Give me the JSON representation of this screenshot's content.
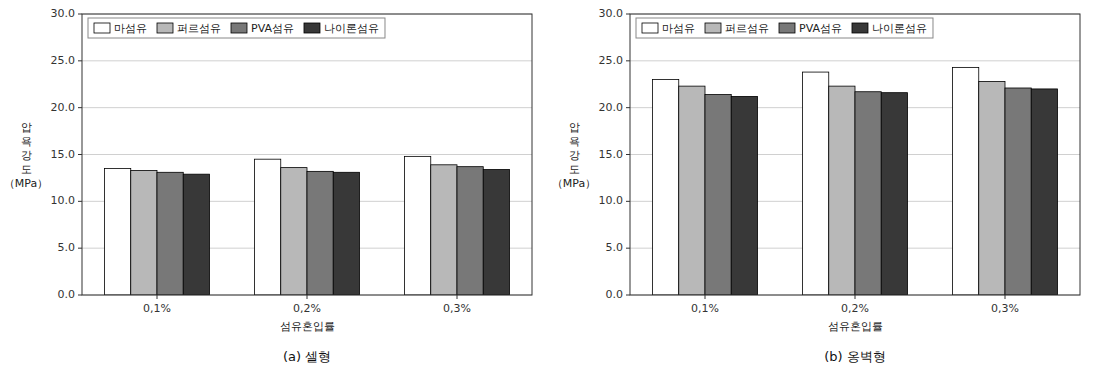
{
  "chart_data": [
    {
      "type": "bar",
      "title": "(a)  셀형",
      "categories": [
        "0,1%",
        "0,2%",
        "0,3%"
      ],
      "series": [
        {
          "name": "마섬유",
          "color": "#ffffff",
          "values": [
            13.5,
            14.5,
            14.8
          ]
        },
        {
          "name": "퍼르섬유",
          "color": "#b8b8b8",
          "values": [
            13.3,
            13.6,
            13.9
          ]
        },
        {
          "name": "PVA섬유",
          "color": "#787878",
          "values": [
            13.1,
            13.2,
            13.7
          ]
        },
        {
          "name": "나이론섬유",
          "color": "#383838",
          "values": [
            12.9,
            13.1,
            13.4
          ]
        }
      ],
      "xlabel": "섬유혼입률",
      "ylabel": "압\n욕\n강\n도\n（MPa）",
      "ylim": [
        0,
        30
      ],
      "yticks": [
        {
          "value": 0,
          "label": "0.0"
        },
        {
          "value": 5,
          "label": "5.0"
        },
        {
          "value": 10,
          "label": "10.0"
        },
        {
          "value": 15,
          "label": "15.0"
        },
        {
          "value": 20,
          "label": "20.0"
        },
        {
          "value": 25,
          "label": "25.0"
        },
        {
          "value": 30,
          "label": "30.0"
        }
      ],
      "grid": true,
      "legend": "upper left"
    },
    {
      "type": "bar",
      "title": "(b)  옹벽형",
      "categories": [
        "0,1%",
        "0,2%",
        "0,3%"
      ],
      "series": [
        {
          "name": "마섬유",
          "color": "#ffffff",
          "values": [
            23.0,
            23.8,
            24.3
          ]
        },
        {
          "name": "퍼르섬유",
          "color": "#b8b8b8",
          "values": [
            22.3,
            22.3,
            22.8
          ]
        },
        {
          "name": "PVA섬유",
          "color": "#787878",
          "values": [
            21.4,
            21.7,
            22.1
          ]
        },
        {
          "name": "나이론섬유",
          "color": "#383838",
          "values": [
            21.2,
            21.6,
            22.0
          ]
        }
      ],
      "xlabel": "섬유혼입률",
      "ylabel": "압\n욕\n강\n도\n（MPa）",
      "ylim": [
        0,
        30
      ],
      "yticks": [
        {
          "value": 0,
          "label": "0.0"
        },
        {
          "value": 5,
          "label": "5.0"
        },
        {
          "value": 10,
          "label": "10.0"
        },
        {
          "value": 15,
          "label": "15.0"
        },
        {
          "value": 20,
          "label": "20.0"
        },
        {
          "value": 25,
          "label": "25.0"
        },
        {
          "value": 30,
          "label": "30.0"
        }
      ],
      "grid": true,
      "legend": "upper left"
    }
  ]
}
